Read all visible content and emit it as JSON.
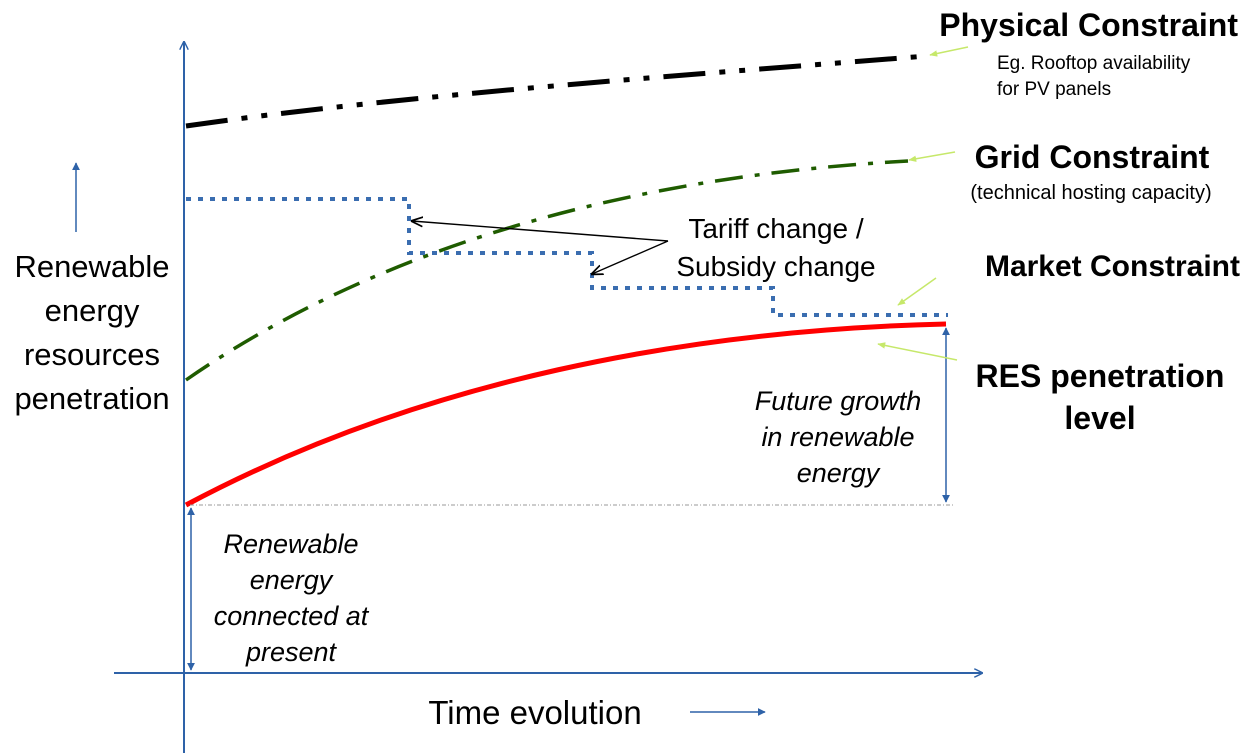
{
  "colors": {
    "axis": "#2e62a8",
    "physical": "#000000",
    "grid": "#1f5c00",
    "market": "#3a6db0",
    "res": "#ff0000",
    "pointer": "#c6e86a",
    "text": "#000000"
  },
  "y_axis": {
    "label_lines": [
      "Renewable",
      "energy",
      "resources",
      "penetration"
    ]
  },
  "x_axis": {
    "label": "Time evolution"
  },
  "constraints": {
    "physical": {
      "title": "Physical Constraint",
      "note_lines": [
        "Eg. Rooftop availability",
        "for PV panels"
      ]
    },
    "grid": {
      "title": "Grid Constraint",
      "note": "(technical hosting capacity)"
    },
    "market": {
      "title": "Market Constraint"
    },
    "res": {
      "title_lines": [
        "RES penetration",
        "level"
      ]
    }
  },
  "tariff": {
    "label_lines": [
      "Tariff change /",
      "Subsidy change"
    ]
  },
  "future_growth": {
    "label_lines": [
      "Future growth",
      "in renewable",
      "energy"
    ]
  },
  "present": {
    "label_lines": [
      "Renewable",
      "energy",
      "connected at",
      "present"
    ]
  }
}
